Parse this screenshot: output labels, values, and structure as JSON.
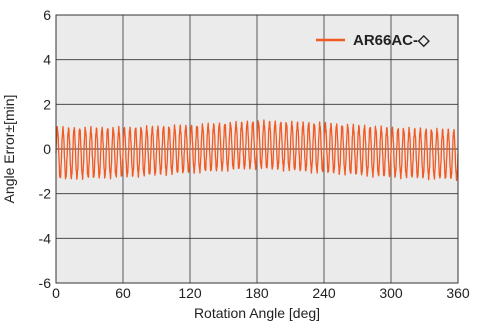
{
  "chart_data": {
    "type": "line",
    "title": "",
    "xlabel": "Rotation Angle [deg]",
    "ylabel": "Angle Error±[min]",
    "xlim": [
      0,
      360
    ],
    "ylim": [
      -6,
      6
    ],
    "xticks": [
      "0",
      "60",
      "120",
      "180",
      "240",
      "300",
      "360"
    ],
    "yticks": [
      "-6",
      "-4",
      "-2",
      "0",
      "2",
      "4",
      "6"
    ],
    "grid": true,
    "plot_background": "#ebebeb",
    "legend_position": "top-right",
    "series": [
      {
        "name": "AR66AC-◇",
        "color": "#f15a22",
        "cycles": 72,
        "envelope": {
          "angle_deg": [
            0,
            60,
            120,
            180,
            240,
            300,
            360
          ],
          "max": [
            1.0,
            1.0,
            1.1,
            1.3,
            1.2,
            1.0,
            0.9
          ],
          "min": [
            -1.4,
            -1.3,
            -1.1,
            -0.9,
            -1.1,
            -1.3,
            -1.4
          ]
        }
      }
    ]
  }
}
